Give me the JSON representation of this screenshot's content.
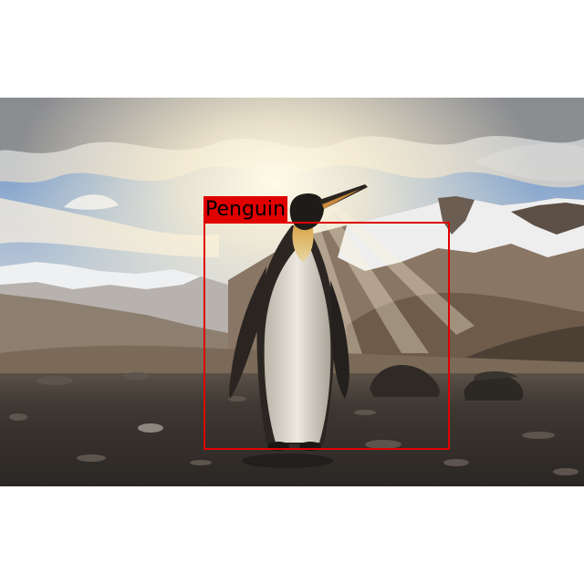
{
  "detection": {
    "label": "Penguin",
    "box_color": "#e00000",
    "label_bg_color": "#e00000",
    "label_text_color": "#000000"
  },
  "scene": {
    "subject": "king-penguin",
    "background_color": "#ffffff"
  }
}
